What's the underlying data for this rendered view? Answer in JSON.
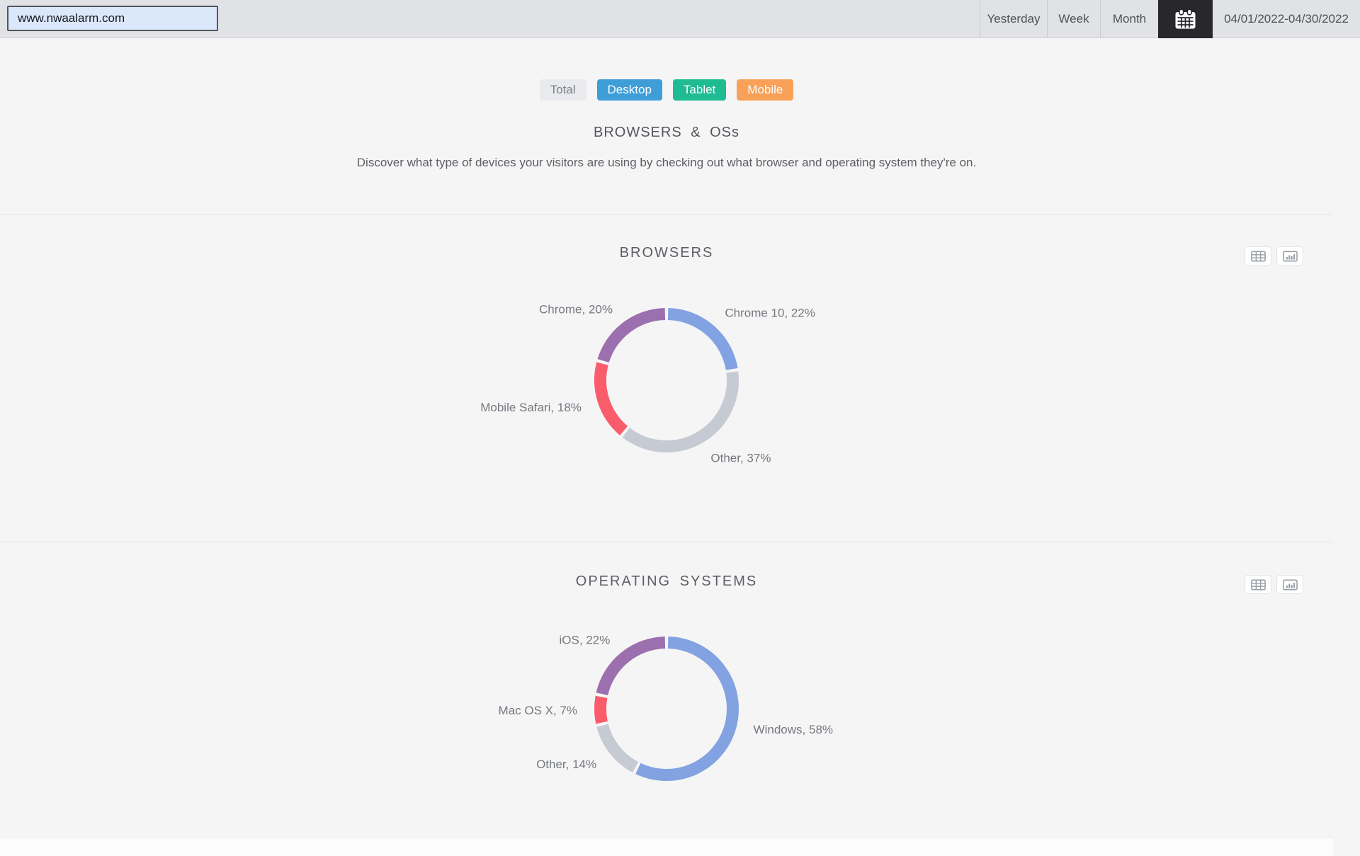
{
  "topbar": {
    "url_value": "www.nwaalarm.com",
    "range_buttons": [
      {
        "label": "Yesterday"
      },
      {
        "label": "Week"
      },
      {
        "label": "Month"
      }
    ],
    "date_range": "04/01/2022-04/30/2022",
    "calendar_button_bg": "#28282c"
  },
  "filters": {
    "buttons": [
      {
        "label": "Total",
        "bg": "#e8eaee",
        "color": "#7d828c"
      },
      {
        "label": "Desktop",
        "bg": "#3f9dd8",
        "color": "#ffffff"
      },
      {
        "label": "Tablet",
        "bg": "#1fbb92",
        "color": "#ffffff"
      },
      {
        "label": "Mobile",
        "bg": "#f9a158",
        "color": "#ffffff"
      }
    ]
  },
  "overview": {
    "title": "BROWSERS & OSs",
    "description": "Discover what type of devices your visitors are using by checking out what browser and operating system they're on."
  },
  "sections": [
    {
      "title": "BROWSERS"
    },
    {
      "title": "OPERATING SYSTEMS"
    }
  ],
  "chart_data": [
    {
      "id": "browsers",
      "type": "pie",
      "subtype": "donut",
      "title": "BROWSERS",
      "start_angle_deg": 0,
      "direction": "clockwise",
      "legend_position": "outside-labels",
      "label_format": "name, value%",
      "segments": [
        {
          "name": "Chrome 10",
          "value": 22,
          "color": "#82a2e1"
        },
        {
          "name": "Other",
          "value": 37,
          "color": "#c6cad3"
        },
        {
          "name": "Mobile Safari",
          "value": 18,
          "color": "#fb5c6c"
        },
        {
          "name": "Chrome",
          "value": 20,
          "color": "#9c6fae"
        }
      ]
    },
    {
      "id": "os",
      "type": "pie",
      "subtype": "donut",
      "title": "OPERATING SYSTEMS",
      "start_angle_deg": 0,
      "direction": "clockwise",
      "legend_position": "outside-labels",
      "label_format": "name, value%",
      "segments": [
        {
          "name": "Windows",
          "value": 58,
          "color": "#82a2e1"
        },
        {
          "name": "Other",
          "value": 14,
          "color": "#c6cad3"
        },
        {
          "name": "Mac OS X",
          "value": 7,
          "color": "#fb5c6c"
        },
        {
          "name": "iOS",
          "value": 22,
          "color": "#9c6fae"
        }
      ]
    }
  ],
  "icons": {
    "calendar": "calendar-icon",
    "table_view": "table-icon",
    "chart_view": "bar-chart-icon"
  }
}
